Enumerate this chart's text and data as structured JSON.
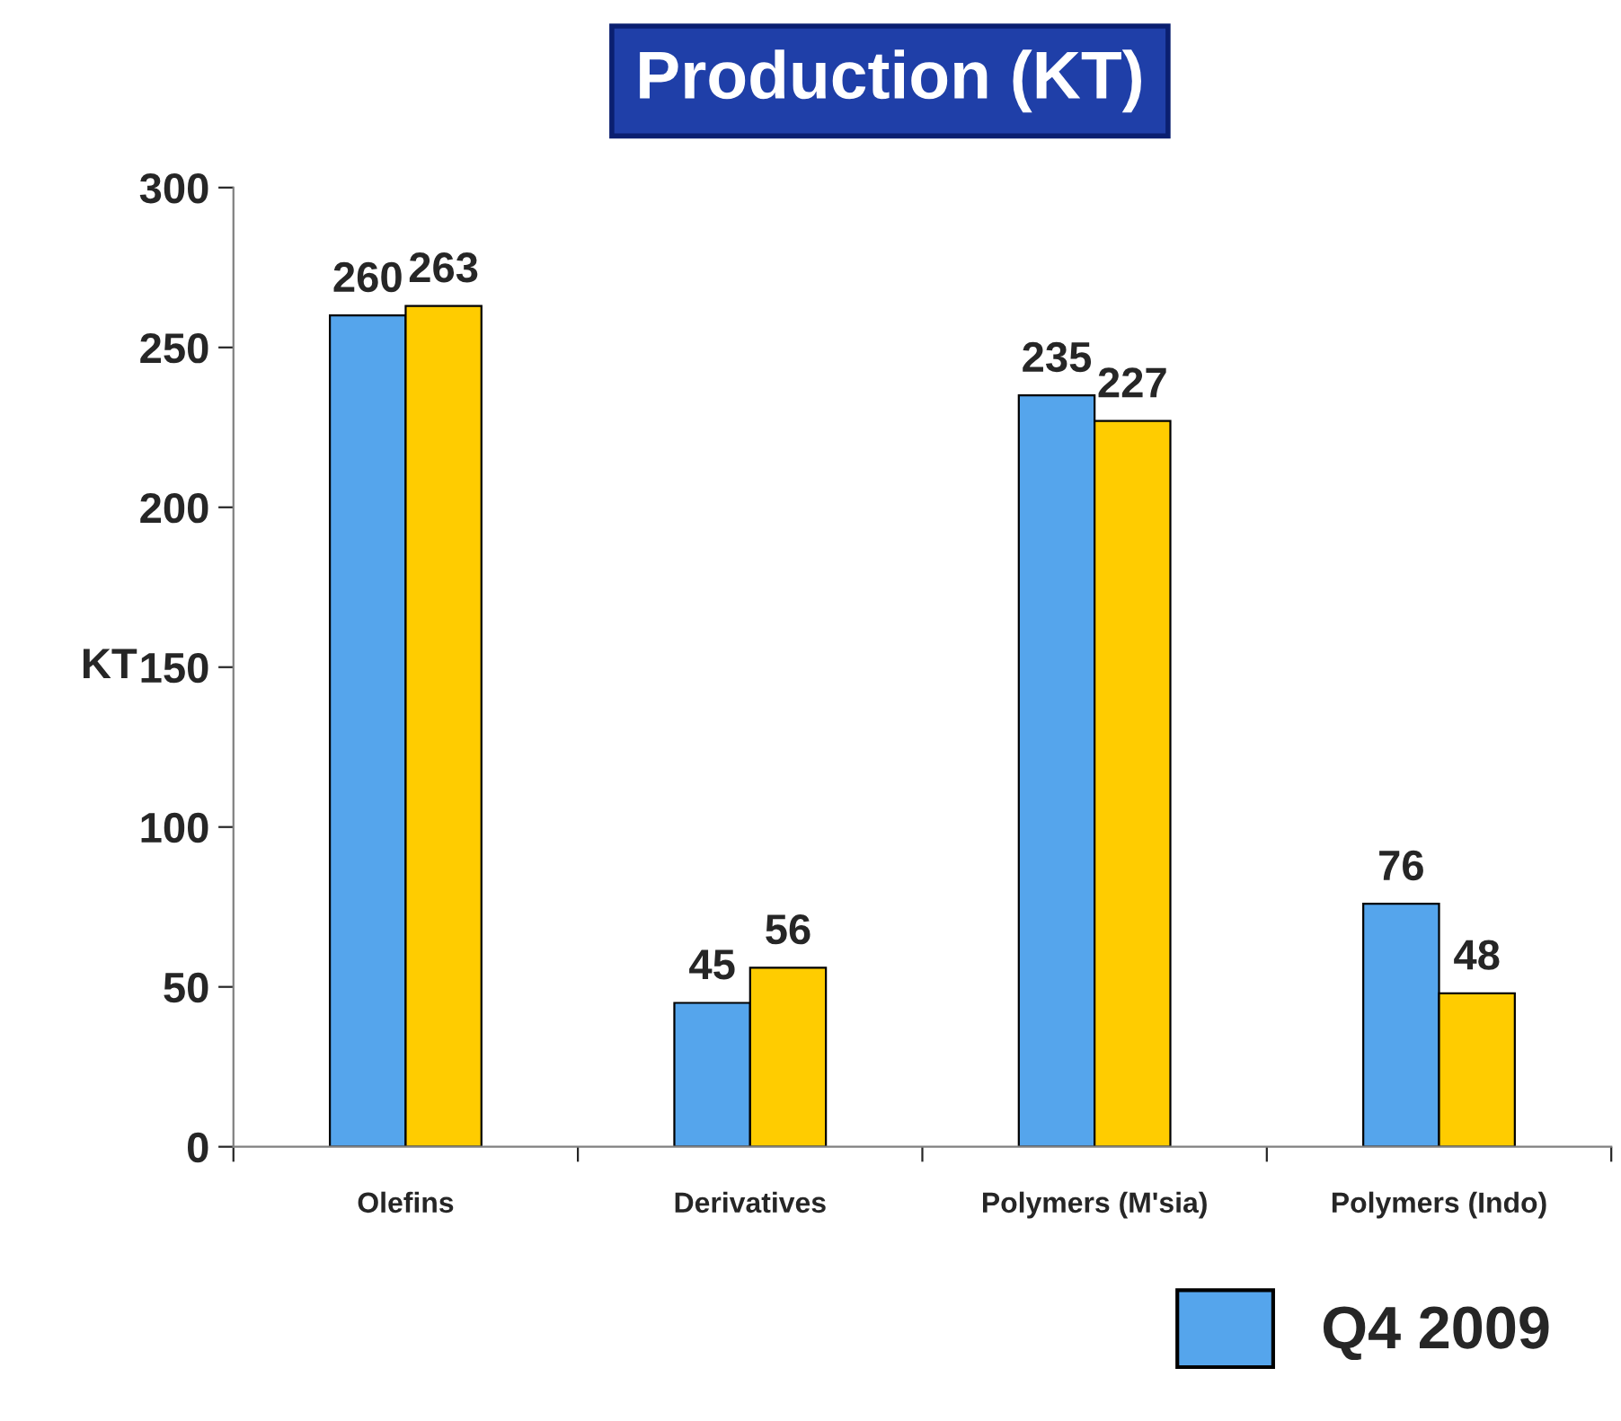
{
  "chart_data": {
    "type": "bar",
    "title": "Production (KT)",
    "ylabel": "KT",
    "categories": [
      "Olefins",
      "Derivatives",
      "Polymers (M'sia)",
      "Polymers (Indo)"
    ],
    "series": [
      {
        "name": "Q4 2009",
        "color": "#55a5ec",
        "values": [
          260,
          45,
          235,
          76
        ]
      },
      {
        "color": "#ffcc00",
        "values": [
          263,
          56,
          227,
          48
        ]
      }
    ],
    "ylim": [
      0,
      300
    ],
    "yticks": [
      0,
      50,
      100,
      150,
      200,
      250,
      300
    ],
    "data_labels": true,
    "legend": "bottom right",
    "grid": false
  }
}
